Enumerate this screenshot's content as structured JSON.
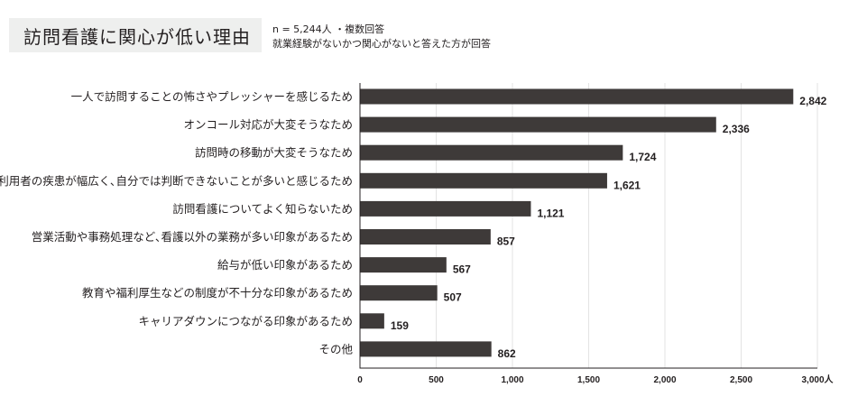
{
  "header": {
    "title": "訪問看護に関心が低い理由",
    "note_line1": "n = 5,244人 ・複数回答",
    "note_line2": "就業経験がないかつ関心がないと答えた方が回答"
  },
  "chart_data": {
    "type": "bar",
    "orientation": "horizontal",
    "categories": [
      "一人で訪問することの怖さやプレッシャーを感じるため",
      "オンコール対応が大変そうなため",
      "訪問時の移動が大変そうなため",
      "利用者の疾患が幅広く､自分では判断できないことが多いと感じるため",
      "訪問看護についてよく知らないため",
      "営業活動や事務処理など､看護以外の業務が多い印象があるため",
      "給与が低い印象があるため",
      "教育や福利厚生などの制度が不十分な印象があるため",
      "キャリアダウンにつながる印象があるため",
      "その他"
    ],
    "values": [
      2842,
      2336,
      1724,
      1621,
      1121,
      857,
      567,
      507,
      159,
      862
    ],
    "value_labels": [
      "2,842",
      "2,336",
      "1,724",
      "1,621",
      "1,121",
      "857",
      "567",
      "507",
      "159",
      "862"
    ],
    "xlim": [
      0,
      3000
    ],
    "xticks": [
      0,
      500,
      1000,
      1500,
      2000,
      2500,
      3000
    ],
    "xtick_labels": [
      "0",
      "500",
      "1,000",
      "1,500",
      "2,000",
      "2,500",
      "3,000人"
    ],
    "grid": "vertical",
    "bar_color": "#3e3a39"
  }
}
